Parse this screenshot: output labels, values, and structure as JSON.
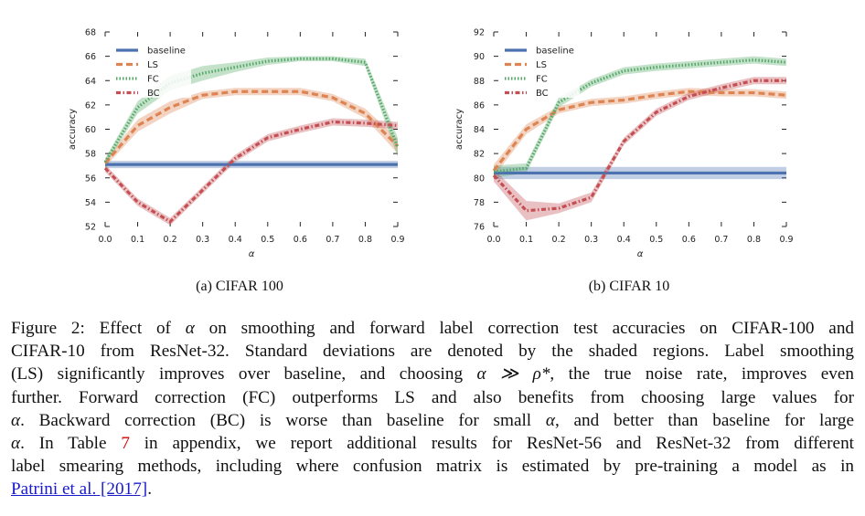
{
  "figure": {
    "chart_data": [
      {
        "type": "line",
        "subcaption": "(a) CIFAR 100",
        "xlabel": "α",
        "ylabel": "accuracy",
        "x": [
          0.0,
          0.1,
          0.2,
          0.3,
          0.4,
          0.5,
          0.6,
          0.7,
          0.8,
          0.9
        ],
        "xticks": [
          "0.0",
          "0.1",
          "0.2",
          "0.3",
          "0.4",
          "0.5",
          "0.6",
          "0.7",
          "0.8",
          "0.9"
        ],
        "ylim": [
          52,
          68
        ],
        "yticks": [
          "52",
          "54",
          "56",
          "58",
          "60",
          "62",
          "64",
          "66",
          "68"
        ],
        "legend": [
          "baseline",
          "LS",
          "FC",
          "BC"
        ],
        "legend_position": "top-left",
        "series": [
          {
            "name": "baseline",
            "style": "solid",
            "color": "#4c72b0",
            "values": [
              57.1,
              57.1,
              57.1,
              57.1,
              57.1,
              57.1,
              57.1,
              57.1,
              57.1,
              57.1
            ],
            "std": [
              0.3,
              0.3,
              0.3,
              0.3,
              0.3,
              0.3,
              0.3,
              0.3,
              0.3,
              0.3
            ]
          },
          {
            "name": "LS",
            "style": "dashed",
            "color": "#dd8452",
            "values": [
              57.2,
              60.3,
              61.8,
              62.8,
              63.1,
              63.1,
              63.1,
              62.6,
              61.3,
              58.6
            ],
            "std": [
              0.3,
              0.5,
              0.5,
              0.3,
              0.3,
              0.3,
              0.3,
              0.3,
              0.4,
              0.6
            ]
          },
          {
            "name": "FC",
            "style": "dotted",
            "color": "#55a868",
            "values": [
              57.3,
              61.8,
              63.8,
              64.6,
              65.1,
              65.6,
              65.8,
              65.8,
              65.5,
              58.5
            ],
            "std": [
              0.3,
              0.5,
              0.6,
              0.6,
              0.4,
              0.3,
              0.2,
              0.2,
              0.3,
              0.8
            ]
          },
          {
            "name": "BC",
            "style": "dashdot",
            "color": "#c44e52",
            "values": [
              56.8,
              54.0,
              52.4,
              55.0,
              57.6,
              59.3,
              60.0,
              60.6,
              60.5,
              60.3
            ],
            "std": [
              0.3,
              0.3,
              0.3,
              0.3,
              0.3,
              0.3,
              0.3,
              0.3,
              0.3,
              0.3
            ]
          }
        ]
      },
      {
        "type": "line",
        "subcaption": "(b) CIFAR 10",
        "xlabel": "α",
        "ylabel": "accuracy",
        "x": [
          0.0,
          0.1,
          0.2,
          0.3,
          0.4,
          0.5,
          0.6,
          0.7,
          0.8,
          0.9
        ],
        "xticks": [
          "0.0",
          "0.1",
          "0.2",
          "0.3",
          "0.4",
          "0.5",
          "0.6",
          "0.7",
          "0.8",
          "0.9"
        ],
        "ylim": [
          76,
          92
        ],
        "yticks": [
          "76",
          "78",
          "80",
          "82",
          "84",
          "86",
          "88",
          "90",
          "92"
        ],
        "legend": [
          "baseline",
          "LS",
          "FC",
          "BC"
        ],
        "legend_position": "top-left",
        "series": [
          {
            "name": "baseline",
            "style": "solid",
            "color": "#4c72b0",
            "values": [
              80.4,
              80.4,
              80.4,
              80.4,
              80.4,
              80.4,
              80.4,
              80.4,
              80.4,
              80.4
            ],
            "std": [
              0.5,
              0.5,
              0.5,
              0.5,
              0.5,
              0.5,
              0.5,
              0.5,
              0.5,
              0.5
            ]
          },
          {
            "name": "LS",
            "style": "dashed",
            "color": "#dd8452",
            "values": [
              80.6,
              84.0,
              85.6,
              86.2,
              86.4,
              86.8,
              87.1,
              87.0,
              87.0,
              86.8
            ],
            "std": [
              0.5,
              0.4,
              0.3,
              0.3,
              0.3,
              0.3,
              0.3,
              0.3,
              0.3,
              0.3
            ]
          },
          {
            "name": "FC",
            "style": "dotted",
            "color": "#55a868",
            "values": [
              80.5,
              80.8,
              86.2,
              87.8,
              88.8,
              89.1,
              89.3,
              89.5,
              89.7,
              89.5
            ],
            "std": [
              0.5,
              0.4,
              0.4,
              0.3,
              0.3,
              0.3,
              0.3,
              0.3,
              0.3,
              0.3
            ]
          },
          {
            "name": "BC",
            "style": "dashdot",
            "color": "#c44e52",
            "values": [
              80.2,
              77.3,
              77.5,
              78.4,
              83.0,
              85.4,
              86.7,
              87.4,
              88.0,
              88.0
            ],
            "std": [
              0.5,
              0.8,
              0.4,
              0.4,
              0.3,
              0.3,
              0.3,
              0.3,
              0.3,
              0.3
            ]
          }
        ]
      }
    ]
  },
  "caption": {
    "label": "Figure 2:",
    "lines": [
      [
        "Effect of ",
        "α",
        " on smoothing and forward label correction test accuracies on CIFAR-100 and"
      ],
      [
        "CIFAR-10 from ResNet-32. Standard deviations are denoted by the shaded regions. Label smoothing"
      ],
      [
        "(LS) significantly improves over baseline, and choosing ",
        "α ≫ ρ*",
        ", the true noise rate, improves even"
      ],
      [
        "further. Forward correction (FC) outperforms LS and also benefits from choosing large values for"
      ],
      [
        "α",
        ". Backward correction (BC) is worse than baseline for small ",
        "α",
        ", and better than baseline for large"
      ],
      [
        "α",
        ". In Table "
      ],
      [
        "label smearing methods, including where confusion matrix is estimated by pre-training a model as in"
      ]
    ],
    "table_ref": "7",
    "line6_rest": " in appendix, we report additional results for ResNet-56 and ResNet-32 from different",
    "citation": "Patrini et al. [2017]",
    "end": "."
  }
}
